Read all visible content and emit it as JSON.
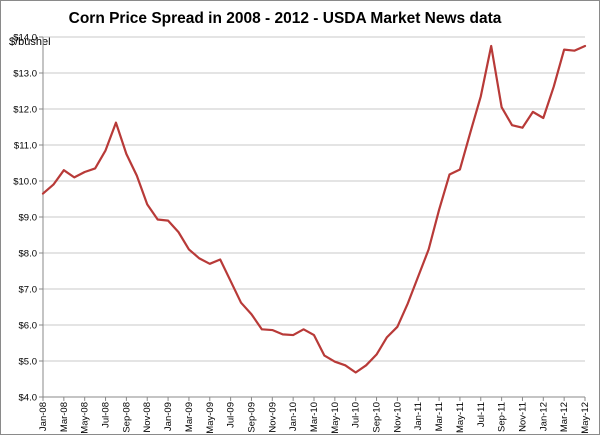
{
  "chart_data": {
    "type": "line",
    "title": "Corn Price Spread in 2008 - 2012 - USDA Market News data",
    "ylabel": "$/bushel",
    "xlabel": "",
    "ylim": [
      4.0,
      14.0
    ],
    "y_ticks": [
      "$4.0",
      "$5.0",
      "$6.0",
      "$7.0",
      "$8.0",
      "$9.0",
      "$10.0",
      "$11.0",
      "$12.0",
      "$13.0",
      "$14.0"
    ],
    "x_tick_labels": [
      "Jan-08",
      "Mar-08",
      "May-08",
      "Jul-08",
      "Sep-08",
      "Nov-08",
      "Jan-09",
      "Mar-09",
      "May-09",
      "Jul-09",
      "Sep-09",
      "Nov-09",
      "Jan-10",
      "Mar-10",
      "May-10",
      "Jul-10",
      "Sep-10",
      "Nov-10",
      "Jan-11",
      "Mar-11",
      "May-11",
      "Jul-11",
      "Sep-11",
      "Nov-11",
      "Jan-12",
      "Mar-12",
      "May-12"
    ],
    "grid": "horizontal",
    "legend": "none",
    "series": [
      {
        "color": "#b83a38",
        "x": [
          "Jan-08",
          "Feb-08",
          "Mar-08",
          "Apr-08",
          "May-08",
          "Jun-08",
          "Jul-08",
          "Aug-08",
          "Sep-08",
          "Oct-08",
          "Nov-08",
          "Dec-08",
          "Jan-09",
          "Feb-09",
          "Mar-09",
          "Apr-09",
          "May-09",
          "Jun-09",
          "Jul-09",
          "Aug-09",
          "Sep-09",
          "Oct-09",
          "Nov-09",
          "Dec-09",
          "Jan-10",
          "Feb-10",
          "Mar-10",
          "Apr-10",
          "May-10",
          "Jun-10",
          "Jul-10",
          "Aug-10",
          "Sep-10",
          "Oct-10",
          "Nov-10",
          "Dec-10",
          "Jan-11",
          "Feb-11",
          "Mar-11",
          "Apr-11",
          "May-11",
          "Jun-11",
          "Jul-11",
          "Aug-11",
          "Sep-11",
          "Oct-11",
          "Nov-11",
          "Dec-11",
          "Jan-12",
          "Feb-12",
          "Mar-12",
          "Apr-12",
          "May-12"
        ],
        "values": [
          9.65,
          9.9,
          10.3,
          10.1,
          10.25,
          10.35,
          10.85,
          11.62,
          10.75,
          10.15,
          9.35,
          8.93,
          8.9,
          8.58,
          8.1,
          7.85,
          7.7,
          7.82,
          7.22,
          6.62,
          6.3,
          5.88,
          5.86,
          5.74,
          5.72,
          5.88,
          5.72,
          5.15,
          4.98,
          4.88,
          4.68,
          4.88,
          5.18,
          5.66,
          5.95,
          6.6,
          7.35,
          8.1,
          9.2,
          10.18,
          10.32,
          11.35,
          12.35,
          13.75,
          12.05,
          11.55,
          11.48,
          11.92,
          11.75,
          12.62,
          13.65,
          13.62,
          13.75
        ]
      }
    ]
  }
}
